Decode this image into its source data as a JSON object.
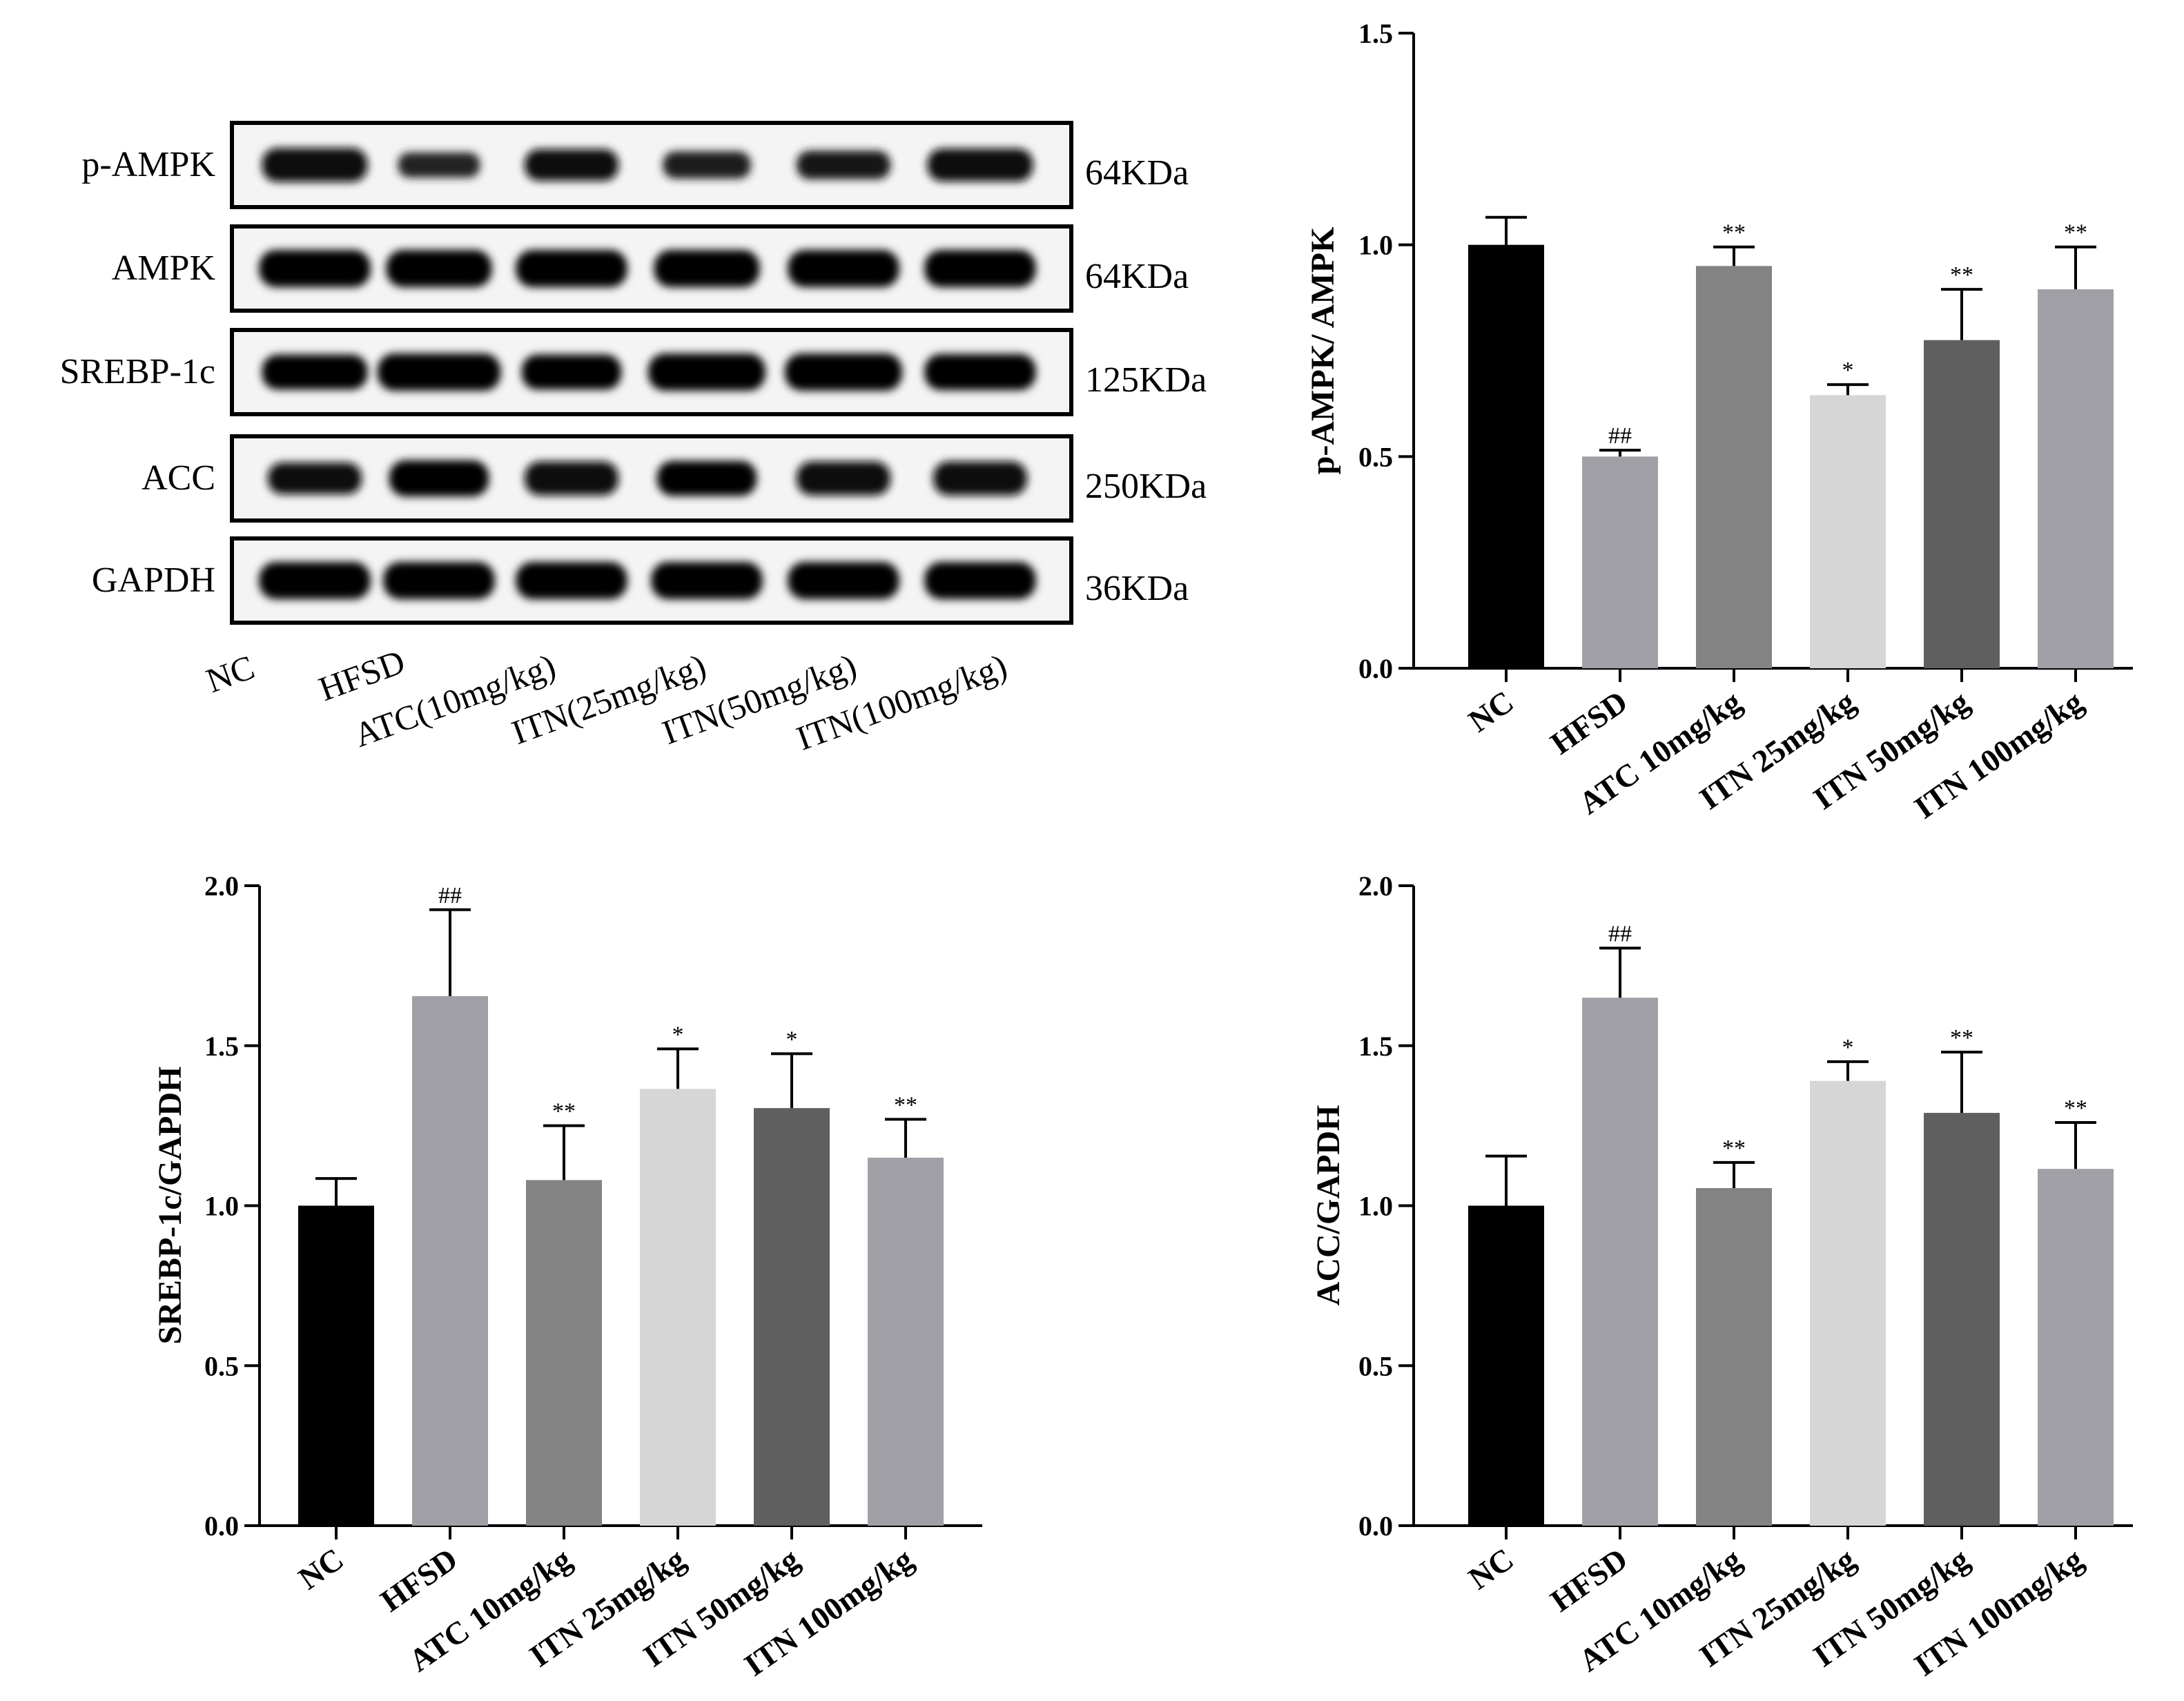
{
  "western_blot": {
    "rows": [
      {
        "protein": "p-AMPK",
        "mw": "64KDa",
        "band_intensity": [
          0.85,
          0.45,
          0.75,
          0.55,
          0.6,
          0.8
        ],
        "band_width": [
          0.9,
          0.7,
          0.8,
          0.75,
          0.8,
          0.9
        ]
      },
      {
        "protein": "AMPK",
        "mw": "64KDa",
        "band_intensity": [
          1,
          1,
          1,
          1,
          1,
          1
        ],
        "band_width": [
          0.95,
          0.9,
          0.95,
          0.9,
          0.95,
          0.95
        ]
      },
      {
        "protein": "SREBP-1c",
        "mw": "125KDa",
        "band_intensity": [
          0.9,
          1,
          0.9,
          1,
          1,
          0.95
        ],
        "band_width": [
          0.9,
          1.05,
          0.85,
          1.0,
          1.0,
          0.95
        ]
      },
      {
        "protein": "ACC",
        "mw": "250KDa",
        "band_intensity": [
          0.75,
          0.95,
          0.85,
          0.9,
          0.85,
          0.85
        ],
        "band_width": [
          0.8,
          0.85,
          0.8,
          0.85,
          0.8,
          0.8
        ]
      },
      {
        "protein": "GAPDH",
        "mw": "36KDa",
        "band_intensity": [
          1,
          1,
          1,
          1,
          1,
          1
        ],
        "band_width": [
          0.95,
          0.95,
          0.95,
          0.95,
          0.95,
          0.95
        ]
      }
    ],
    "lanes": [
      "NC",
      "HFSD",
      "ATC(10mg/kg)",
      "ITN(25mg/kg)",
      "ITN(50mg/kg)",
      "ITN(100mg/kg)"
    ]
  },
  "chart_data": [
    {
      "type": "bar",
      "ylabel": "p-AMPK/ AMPK",
      "ylim": [
        0,
        1.5
      ],
      "yticks": [
        "0.0",
        "0.5",
        "1.0",
        "1.5"
      ],
      "categories": [
        "NC",
        "HFSD",
        "ATC 10mg/kg",
        "ITN 25mg/kg",
        "ITN 50mg/kg",
        "ITN 100mg/kg"
      ],
      "values": [
        1.0,
        0.5,
        0.95,
        0.645,
        0.775,
        0.895
      ],
      "errors": [
        0.065,
        0.015,
        0.045,
        0.025,
        0.12,
        0.1
      ],
      "significance": [
        "",
        "##",
        "**",
        "*",
        "**",
        "**"
      ],
      "colors": [
        "#000000",
        "#a0a0a6",
        "#838383",
        "#d6d6d6",
        "#5f5f5f",
        "#a0a0a6"
      ]
    },
    {
      "type": "bar",
      "ylabel": "SREBP-1c/GAPDH",
      "ylim": [
        0,
        2.0
      ],
      "yticks": [
        "0.0",
        "0.5",
        "1.0",
        "1.5",
        "2.0"
      ],
      "categories": [
        "NC",
        "HFSD",
        "ATC 10mg/kg",
        "ITN 25mg/kg",
        "ITN 50mg/kg",
        "ITN 100mg/kg"
      ],
      "values": [
        1.0,
        1.655,
        1.08,
        1.365,
        1.305,
        1.15
      ],
      "errors": [
        0.085,
        0.27,
        0.17,
        0.125,
        0.17,
        0.12
      ],
      "significance": [
        "",
        "##",
        "**",
        "*",
        "*",
        "**"
      ],
      "colors": [
        "#000000",
        "#a0a0a6",
        "#838383",
        "#d6d6d6",
        "#5f5f5f",
        "#a0a0a6"
      ]
    },
    {
      "type": "bar",
      "ylabel": "ACC/GAPDH",
      "ylim": [
        0,
        2.0
      ],
      "yticks": [
        "0.0",
        "0.5",
        "1.0",
        "1.5",
        "2.0"
      ],
      "categories": [
        "NC",
        "HFSD",
        "ATC 10mg/kg",
        "ITN 25mg/kg",
        "ITN 50mg/kg",
        "ITN 100mg/kg"
      ],
      "values": [
        1.0,
        1.65,
        1.055,
        1.39,
        1.29,
        1.115
      ],
      "errors": [
        0.155,
        0.155,
        0.08,
        0.06,
        0.19,
        0.145
      ],
      "significance": [
        "",
        "##",
        "**",
        "*",
        "**",
        "**"
      ],
      "colors": [
        "#000000",
        "#a0a0a6",
        "#838383",
        "#d6d6d6",
        "#5f5f5f",
        "#a0a0a6"
      ]
    }
  ]
}
